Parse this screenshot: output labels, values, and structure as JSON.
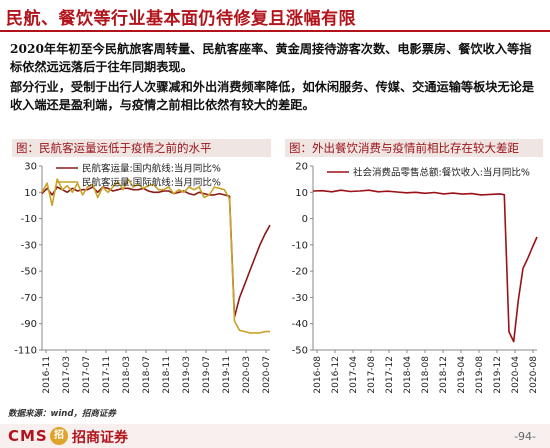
{
  "slide": {
    "title": "民航、餐饮等行业基本面仍待修复且涨幅有限",
    "paragraph1": "2020年年初至今民航旅客周转量、民航客座率、黄金周接待游客次数、电影票房、餐饮收入等指标依然远远落后于往年同期表现。",
    "paragraph2": "部分行业，受制于出行人次骤减和外出消费频率降低，如休闲服务、传媒、交通运输等板块无论是收入端还是盈利端，与疫情之前相比依然有较大的差距。",
    "source": "数据来源：wind，招商证券",
    "footer": {
      "logo_en": "CMS",
      "logo_badge": "招",
      "logo_cn": "招商证券",
      "page": "-94-"
    }
  },
  "colors": {
    "accent": "#b3141c",
    "series_domestic": "#8b1a1a",
    "series_intl": "#c9a227",
    "retail": "#9b1118"
  },
  "chart_data": [
    {
      "type": "line",
      "title": "图：民航客运量远低于疫情之前的水平",
      "ylim": [
        -110,
        30
      ],
      "yticks": [
        30,
        10,
        -10,
        -30,
        -50,
        -70,
        -90,
        -110
      ],
      "x_labels": [
        "2016-11",
        "2017-03",
        "2017-07",
        "2017-11",
        "2018-03",
        "2018-07",
        "2018-11",
        "2019-03",
        "2019-07",
        "2019-11",
        "2020-03",
        "2020-07"
      ],
      "x_range": [
        0,
        45
      ],
      "series": [
        {
          "name": "民航客运量:国内航线:当月同比%",
          "values": [
            [
              0,
              9
            ],
            [
              1,
              13
            ],
            [
              2,
              8
            ],
            [
              3,
              14
            ],
            [
              4,
              12
            ],
            [
              5,
              10
            ],
            [
              6,
              13
            ],
            [
              7,
              11
            ],
            [
              8,
              12
            ],
            [
              9,
              12
            ],
            [
              10,
              14
            ],
            [
              11,
              10
            ],
            [
              12,
              14
            ],
            [
              13,
              13
            ],
            [
              14,
              11
            ],
            [
              15,
              12
            ],
            [
              16,
              13
            ],
            [
              17,
              13
            ],
            [
              18,
              12
            ],
            [
              19,
              12
            ],
            [
              20,
              13
            ],
            [
              21,
              11
            ],
            [
              22,
              10
            ],
            [
              23,
              10
            ],
            [
              24,
              11
            ],
            [
              25,
              11
            ],
            [
              26,
              9
            ],
            [
              27,
              10
            ],
            [
              28,
              11
            ],
            [
              29,
              9
            ],
            [
              30,
              8
            ],
            [
              31,
              10
            ],
            [
              32,
              9
            ],
            [
              33,
              8
            ],
            [
              34,
              8
            ],
            [
              35,
              9
            ],
            [
              36,
              8
            ],
            [
              37,
              7
            ],
            [
              38,
              -85
            ],
            [
              39,
              -70
            ],
            [
              40,
              -60
            ],
            [
              41,
              -50
            ],
            [
              42,
              -40
            ],
            [
              43,
              -30
            ],
            [
              44,
              -22
            ],
            [
              45,
              -15
            ]
          ]
        },
        {
          "name": "民航客运量:国际航线:当月同比%",
          "values": [
            [
              0,
              10
            ],
            [
              1,
              17
            ],
            [
              2,
              0
            ],
            [
              3,
              20
            ],
            [
              4,
              12
            ],
            [
              5,
              15
            ],
            [
              6,
              10
            ],
            [
              7,
              17
            ],
            [
              8,
              8
            ],
            [
              9,
              14
            ],
            [
              10,
              16
            ],
            [
              11,
              6
            ],
            [
              12,
              14
            ],
            [
              13,
              10
            ],
            [
              14,
              14
            ],
            [
              15,
              18
            ],
            [
              16,
              12
            ],
            [
              17,
              20
            ],
            [
              18,
              14
            ],
            [
              19,
              16
            ],
            [
              20,
              13
            ],
            [
              21,
              15
            ],
            [
              22,
              16
            ],
            [
              23,
              12
            ],
            [
              24,
              12
            ],
            [
              25,
              14
            ],
            [
              26,
              9
            ],
            [
              27,
              12
            ],
            [
              28,
              10
            ],
            [
              29,
              14
            ],
            [
              30,
              12
            ],
            [
              31,
              14
            ],
            [
              32,
              6
            ],
            [
              33,
              8
            ],
            [
              34,
              14
            ],
            [
              35,
              13
            ],
            [
              36,
              12
            ],
            [
              37,
              5
            ],
            [
              38,
              -88
            ],
            [
              39,
              -95
            ],
            [
              40,
              -96
            ],
            [
              41,
              -97
            ],
            [
              42,
              -97
            ],
            [
              43,
              -97
            ],
            [
              44,
              -96
            ],
            [
              45,
              -96
            ]
          ]
        }
      ]
    },
    {
      "type": "line",
      "title": "图：外出餐饮消费与疫情前相比存在较大差距",
      "ylim": [
        -50,
        20
      ],
      "yticks": [
        20,
        10,
        0,
        -10,
        -20,
        -30,
        -40,
        -50
      ],
      "x_labels": [
        "2016-08",
        "2016-12",
        "2017-04",
        "2017-08",
        "2017-12",
        "2018-04",
        "2018-08",
        "2018-12",
        "2019-04",
        "2019-08",
        "2019-12",
        "2020-04",
        "2020-08"
      ],
      "x_range": [
        0,
        48
      ],
      "series": [
        {
          "name": "社会消费品零售总额:餐饮收入:当月同比%",
          "values": [
            [
              0,
              10.5
            ],
            [
              2,
              10.6
            ],
            [
              4,
              10.2
            ],
            [
              6,
              10.8
            ],
            [
              8,
              10.3
            ],
            [
              10,
              10.5
            ],
            [
              12,
              10.8
            ],
            [
              14,
              10.2
            ],
            [
              16,
              10.4
            ],
            [
              18,
              10.1
            ],
            [
              20,
              9.8
            ],
            [
              22,
              10
            ],
            [
              24,
              9.6
            ],
            [
              26,
              9.9
            ],
            [
              28,
              9.4
            ],
            [
              30,
              9.7
            ],
            [
              32,
              9.3
            ],
            [
              34,
              9.5
            ],
            [
              36,
              9
            ],
            [
              38,
              9.2
            ],
            [
              40,
              9.4
            ],
            [
              41,
              9.1
            ],
            [
              42,
              -43.1
            ],
            [
              43,
              -46.8
            ],
            [
              44,
              -31.1
            ],
            [
              45,
              -18.9
            ],
            [
              46,
              -15.2
            ],
            [
              47,
              -11
            ],
            [
              48,
              -7
            ]
          ]
        }
      ]
    }
  ]
}
